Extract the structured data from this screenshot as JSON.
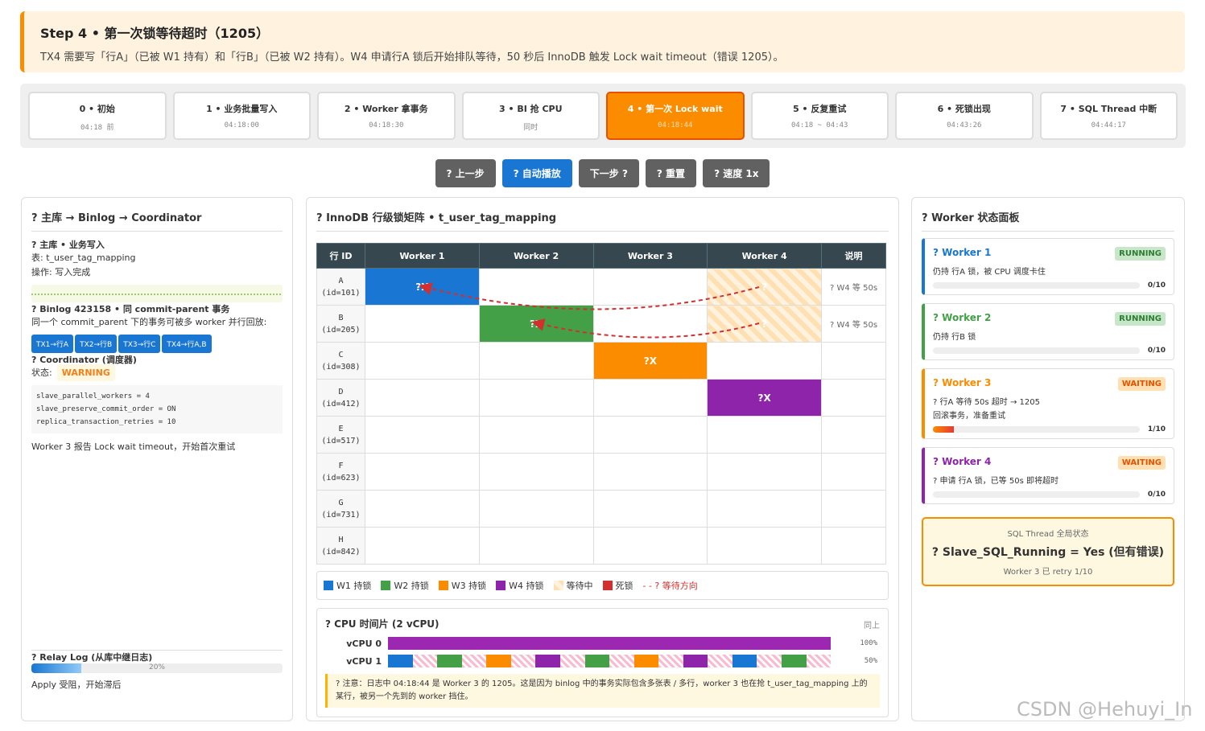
{
  "header": {
    "title": "Step 4 • 第一次锁等待超时（1205）",
    "desc": "TX4 需要写「行A」（已被 W1 持有）和「行B」（已被 W2 持有）。W4 申请行A 锁后开始排队等待，50 秒后 InnoDB 触发 Lock wait timeout（错误 1205）。"
  },
  "steps": [
    {
      "label": "0 • 初始",
      "time": "04:18 前"
    },
    {
      "label": "1 • 业务批量写入",
      "time": "04:18:00"
    },
    {
      "label": "2 • Worker 拿事务",
      "time": "04:18:30"
    },
    {
      "label": "3 • BI 抢 CPU",
      "time": "同时"
    },
    {
      "label": "4 • 第一次 Lock wait",
      "time": "04:18:44",
      "active": true
    },
    {
      "label": "5 • 反复重试",
      "time": "04:18 ~ 04:43"
    },
    {
      "label": "6 • 死锁出现",
      "time": "04:43:26"
    },
    {
      "label": "7 • SQL Thread 中断",
      "time": "04:44:17"
    }
  ],
  "controls": [
    "? 上一步",
    "? 自动播放",
    "下一步 ?",
    "? 重置",
    "? 速度 1x"
  ],
  "left": {
    "title": "? 主库 → Binlog → Coordinator",
    "master": {
      "title": "? 主库 • 业务写入",
      "table": "表: t_user_tag_mapping",
      "op": "操作: 写入完成"
    },
    "binlog": {
      "title": "? Binlog 423158 • 同 commit-parent 事务",
      "desc": "同一个 commit_parent 下的事务可被多 worker 并行回放:",
      "tags": [
        "TX1→行A",
        "TX2→行B",
        "TX3→行C",
        "TX4→行A,B"
      ]
    },
    "coordinator": {
      "title": "? Coordinator (调度器)",
      "status_label": "状态:",
      "status": "WARNING",
      "config": [
        "slave_parallel_workers = 4",
        "slave_preserve_commit_order = ON",
        "replica_transaction_retries = 10"
      ],
      "note": "Worker 3 报告 Lock wait timeout，开始首次重试"
    },
    "relay": {
      "title": "? Relay Log (从库中继日志)",
      "progress": "20%",
      "note": "Apply 受阻，开始滞后"
    }
  },
  "matrix": {
    "title": "? InnoDB 行级锁矩阵 • t_user_tag_mapping",
    "headers": [
      "行 ID",
      "Worker 1",
      "Worker 2",
      "Worker 3",
      "Worker 4",
      "说明"
    ],
    "rows": [
      {
        "id": "A",
        "sub": "(id=101)",
        "cells": [
          {
            "label": "?X",
            "color": "#1976d2"
          },
          null,
          null,
          {
            "label": "?",
            "color": "wait"
          }
        ],
        "note": "? W4 等 50s"
      },
      {
        "id": "B",
        "sub": "(id=205)",
        "cells": [
          null,
          {
            "label": "?X",
            "color": "#43a047"
          },
          null,
          {
            "label": "?",
            "color": "wait"
          }
        ],
        "note": "? W4 等 50s"
      },
      {
        "id": "C",
        "sub": "(id=308)",
        "cells": [
          null,
          null,
          {
            "label": "?X",
            "color": "#fb8c00"
          },
          null
        ],
        "note": null
      },
      {
        "id": "D",
        "sub": "(id=412)",
        "cells": [
          null,
          null,
          null,
          {
            "label": "?X",
            "color": "#8e24aa"
          }
        ],
        "note": null
      },
      {
        "id": "E",
        "sub": "(id=517)",
        "cells": [
          null,
          null,
          null,
          null
        ],
        "note": null
      },
      {
        "id": "F",
        "sub": "(id=623)",
        "cells": [
          null,
          null,
          null,
          null
        ],
        "note": null
      },
      {
        "id": "G",
        "sub": "(id=731)",
        "cells": [
          null,
          null,
          null,
          null
        ],
        "note": null
      },
      {
        "id": "H",
        "sub": "(id=842)",
        "cells": [
          null,
          null,
          null,
          null
        ],
        "note": null
      }
    ],
    "legend": [
      {
        "label": "W1 持锁",
        "color": "#1976d2"
      },
      {
        "label": "W2 持锁",
        "color": "#43a047"
      },
      {
        "label": "W3 持锁",
        "color": "#fb8c00"
      },
      {
        "label": "W4 持锁",
        "color": "#8e24aa"
      },
      {
        "label": "等待中",
        "color": "wait"
      },
      {
        "label": "死锁",
        "color": "#d32f2f"
      },
      {
        "label": "- - ? 等待方向",
        "color": null
      }
    ]
  },
  "cpu": {
    "title": "? CPU 时间片 (2 vCPU)",
    "tag": "同上",
    "rows": [
      {
        "name": "vCPU 0",
        "usage": "100%"
      },
      {
        "name": "vCPU 1",
        "usage": "50%"
      }
    ],
    "warning": "? 注意：日志中 04:18:44 是 Worker 3 的 1205。这是因为 binlog 中的事务实际包含多张表 / 多行，worker 3 也在抢 t_user_tag_mapping 上的某行，被另一个先到的 worker 挡住。"
  },
  "workers": {
    "title": "? Worker 状态面板",
    "items": [
      {
        "name": "? Worker 1",
        "status": "RUNNING",
        "lines": [
          "仍持 行A 锁，被 CPU 调度卡住"
        ],
        "progress": "0/10",
        "color": "#1976d2"
      },
      {
        "name": "? Worker 2",
        "status": "RUNNING",
        "lines": [
          "仍持 行B 锁"
        ],
        "progress": "0/10",
        "color": "#43a047"
      },
      {
        "name": "? Worker 3",
        "status": "WAITING",
        "lines": [
          "? 行A 等待 50s 超时 → 1205",
          "回滚事务，准备重试"
        ],
        "progress": "1/10",
        "color": "#fb8c00"
      },
      {
        "name": "? Worker 4",
        "status": "WAITING",
        "lines": [
          "? 申请 行A 锁，已等 50s 即将超时"
        ],
        "progress": "0/10",
        "color": "#8e24aa"
      }
    ]
  },
  "sql_thread": {
    "label": "SQL Thread 全局状态",
    "main": "? Slave_SQL_Running = Yes (但有错误)",
    "sub": "Worker 3 已 retry 1/10"
  },
  "watermark": "CSDN @Hehuyi_In"
}
